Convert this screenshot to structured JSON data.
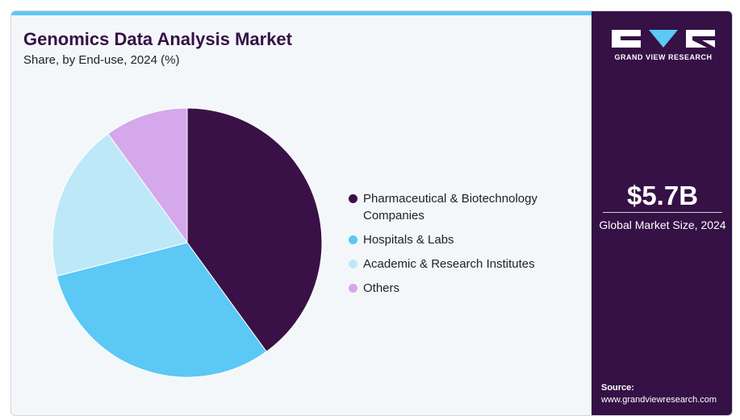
{
  "header": {
    "title": "Genomics Data Analysis Market",
    "subtitle": "Share, by End-use, 2024 (%)"
  },
  "brand": {
    "name": "GRAND VIEW RESEARCH",
    "accent_color": "#5bc8f5",
    "panel_color": "#351145"
  },
  "stats": {
    "market_size": "$5.7B",
    "market_size_label": "Global Market Size, 2024"
  },
  "source": {
    "label": "Source:",
    "url": "www.grandviewresearch.com"
  },
  "chart_data": {
    "type": "pie",
    "title": "Genomics Data Analysis Market",
    "subtitle": "Share, by End-use, 2024 (%)",
    "legend_position": "right",
    "categories": [
      "Pharmaceutical & Biotechnology Companies",
      "Hospitals & Labs",
      "Academic & Research Institutes",
      "Others"
    ],
    "values": [
      40,
      31,
      19,
      10
    ],
    "colors": [
      "#3a1146",
      "#5bc8f5",
      "#bde8f8",
      "#d4a8ea"
    ]
  }
}
